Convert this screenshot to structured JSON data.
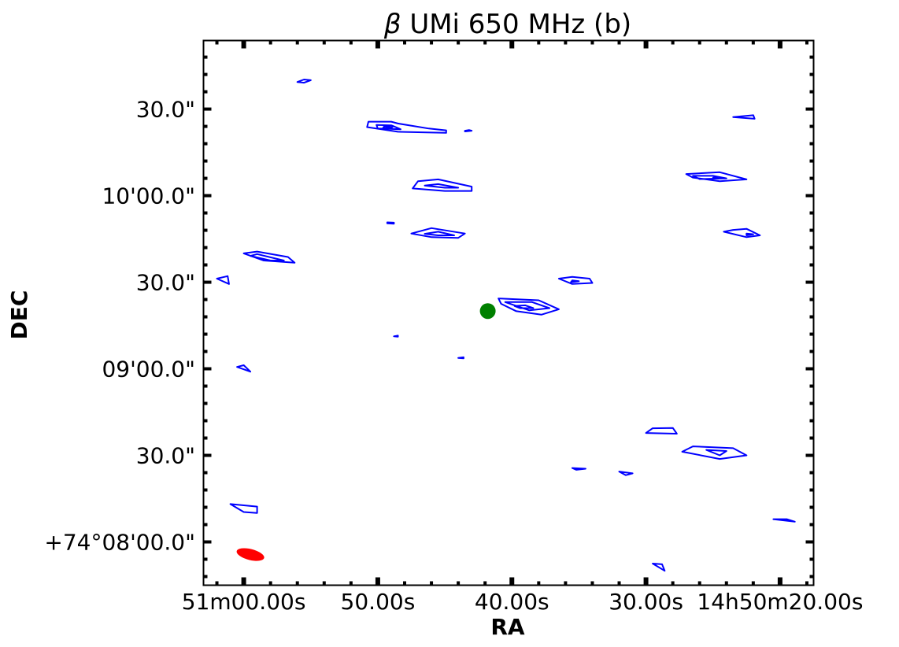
{
  "chart_data": {
    "type": "contour",
    "title": "β UMi 650 MHz  (b)",
    "title_symbol": "β",
    "title_text": " UMi 650 MHz  (b)",
    "xlabel": "RA",
    "ylabel": "DEC",
    "x_unit": "seconds of RA after 14h50m",
    "y_unit": "arcsec of DEC after +74°08'00\"",
    "xlim": [
      63,
      17.5
    ],
    "ylim": [
      -12,
      139
    ],
    "x_ticks": [
      {
        "value": 60,
        "label": "51m00.00s"
      },
      {
        "value": 50,
        "label": "50.00s"
      },
      {
        "value": 40,
        "label": "40.00s"
      },
      {
        "value": 30,
        "label": "30.00s"
      },
      {
        "value": 20,
        "label": "14h50m20.00s"
      }
    ],
    "y_ticks": [
      {
        "value": 0,
        "label": "+74°08'00.0\""
      },
      {
        "value": 24,
        "label": "30.0\""
      },
      {
        "value": 48,
        "label": "09'00.0\""
      },
      {
        "value": 72,
        "label": "30.0\""
      },
      {
        "value": 96,
        "label": "10'00.0\""
      },
      {
        "value": 120,
        "label": "30.0\""
      }
    ],
    "contour_color": "#0000ff",
    "marker_color": "#008000",
    "beam_color": "#ff0000",
    "marker": {
      "ra": 41.8,
      "dec": 64
    },
    "beam": {
      "ra": 59.5,
      "dec": -3.5
    },
    "contours": [
      [
        [
          56.0,
          127.5
        ],
        [
          55.5,
          128.2
        ],
        [
          55.0,
          128.0
        ],
        [
          55.5,
          127.3
        ],
        [
          56.0,
          127.5
        ]
      ],
      [
        [
          49.0,
          116.5
        ],
        [
          50.7,
          116.5
        ],
        [
          50.8,
          115.0
        ],
        [
          48.5,
          113.7
        ],
        [
          46.0,
          113.5
        ],
        [
          44.9,
          113.4
        ],
        [
          44.9,
          114.1
        ],
        [
          46.2,
          114.6
        ],
        [
          48.5,
          116.0
        ],
        [
          49.0,
          116.5
        ]
      ],
      [
        [
          49.0,
          115.5
        ],
        [
          50.1,
          115.6
        ],
        [
          50.0,
          114.6
        ],
        [
          48.3,
          114.4
        ],
        [
          48.8,
          115.2
        ],
        [
          49.0,
          115.5
        ]
      ],
      [
        [
          48.9,
          115.0
        ],
        [
          49.5,
          115.3
        ],
        [
          49.6,
          114.8
        ],
        [
          49.0,
          114.8
        ],
        [
          48.9,
          115.0
        ]
      ],
      [
        [
          43.5,
          114.0
        ],
        [
          43.2,
          114.2
        ],
        [
          43.0,
          114.0
        ],
        [
          43.5,
          113.8
        ],
        [
          43.5,
          114.0
        ]
      ],
      [
        [
          45.5,
          100.5
        ],
        [
          47.0,
          100.0
        ],
        [
          47.4,
          98.0
        ],
        [
          45.0,
          97.3
        ],
        [
          43.0,
          97.3
        ],
        [
          43.0,
          98.5
        ],
        [
          45.5,
          100.5
        ]
      ],
      [
        [
          45.5,
          99.2
        ],
        [
          46.5,
          98.8
        ],
        [
          45.0,
          98.2
        ],
        [
          44.0,
          98.2
        ],
        [
          45.5,
          99.2
        ]
      ],
      [
        [
          49.3,
          88.6
        ],
        [
          48.8,
          88.5
        ],
        [
          48.8,
          88.2
        ],
        [
          49.3,
          88.3
        ],
        [
          49.3,
          88.6
        ]
      ],
      [
        [
          46.0,
          87.0
        ],
        [
          47.5,
          85.5
        ],
        [
          46.0,
          84.5
        ],
        [
          44.0,
          84.3
        ],
        [
          43.5,
          85.5
        ],
        [
          46.0,
          87.0
        ]
      ],
      [
        [
          45.5,
          86.0
        ],
        [
          46.5,
          85.4
        ],
        [
          45.5,
          85.0
        ],
        [
          44.3,
          85.0
        ],
        [
          45.5,
          86.0
        ]
      ],
      [
        [
          59.0,
          80.5
        ],
        [
          60.0,
          80.0
        ],
        [
          58.5,
          78.0
        ],
        [
          56.2,
          77.4
        ],
        [
          56.7,
          79.0
        ],
        [
          59.0,
          80.5
        ]
      ],
      [
        [
          59.0,
          79.8
        ],
        [
          59.5,
          79.3
        ],
        [
          58.0,
          78.0
        ],
        [
          57.0,
          78.0
        ],
        [
          59.0,
          79.8
        ]
      ],
      [
        [
          61.2,
          73.7
        ],
        [
          62.0,
          73.0
        ],
        [
          61.1,
          71.5
        ],
        [
          61.2,
          73.7
        ]
      ],
      [
        [
          41.0,
          67.5
        ],
        [
          38.0,
          67.0
        ],
        [
          36.5,
          64.5
        ],
        [
          37.8,
          63.0
        ],
        [
          39.7,
          64.0
        ],
        [
          40.8,
          66.0
        ],
        [
          41.0,
          67.5
        ]
      ],
      [
        [
          40.5,
          66.5
        ],
        [
          38.5,
          66.5
        ],
        [
          37.2,
          64.8
        ],
        [
          38.7,
          64.2
        ],
        [
          40.5,
          66.5
        ]
      ],
      [
        [
          39.8,
          65.4
        ],
        [
          39.0,
          65.6
        ],
        [
          38.4,
          64.8
        ],
        [
          39.4,
          64.8
        ],
        [
          39.8,
          65.4
        ]
      ],
      [
        [
          35.5,
          73.5
        ],
        [
          34.2,
          73.0
        ],
        [
          34.0,
          71.8
        ],
        [
          35.5,
          71.5
        ],
        [
          36.5,
          73.0
        ],
        [
          35.5,
          73.5
        ]
      ],
      [
        [
          35.5,
          72.5
        ],
        [
          35.0,
          72.3
        ],
        [
          35.6,
          72.0
        ],
        [
          35.5,
          72.5
        ]
      ],
      [
        [
          48.8,
          57.0
        ],
        [
          48.5,
          57.2
        ],
        [
          48.5,
          56.9
        ],
        [
          48.8,
          57.0
        ]
      ],
      [
        [
          44.0,
          51.0
        ],
        [
          43.6,
          51.2
        ],
        [
          43.6,
          50.9
        ],
        [
          44.0,
          51.0
        ]
      ],
      [
        [
          60.0,
          49.0
        ],
        [
          60.5,
          48.5
        ],
        [
          59.5,
          47.2
        ],
        [
          60.0,
          49.0
        ]
      ],
      [
        [
          27.0,
          102.0
        ],
        [
          24.5,
          102.5
        ],
        [
          22.5,
          100.5
        ],
        [
          24.5,
          100.0
        ],
        [
          26.5,
          101.0
        ],
        [
          27.0,
          102.0
        ]
      ],
      [
        [
          26.5,
          101.5
        ],
        [
          25.0,
          101.5
        ],
        [
          24.0,
          100.8
        ],
        [
          26.0,
          100.6
        ],
        [
          26.5,
          101.5
        ]
      ],
      [
        [
          25.0,
          101.0
        ],
        [
          24.7,
          101.1
        ],
        [
          24.6,
          100.7
        ],
        [
          25.0,
          101.0
        ]
      ],
      [
        [
          23.5,
          117.8
        ],
        [
          22.0,
          118.3
        ],
        [
          21.9,
          117.3
        ],
        [
          23.5,
          117.8
        ]
      ],
      [
        [
          23.5,
          86.5
        ],
        [
          22.5,
          86.8
        ],
        [
          21.5,
          85.0
        ],
        [
          22.5,
          84.5
        ],
        [
          24.2,
          86.0
        ],
        [
          23.5,
          86.5
        ]
      ],
      [
        [
          22.5,
          85.5
        ],
        [
          22.0,
          85.3
        ],
        [
          22.5,
          85.0
        ],
        [
          22.5,
          85.5
        ]
      ],
      [
        [
          29.5,
          31.5
        ],
        [
          28.0,
          31.6
        ],
        [
          27.7,
          30.0
        ],
        [
          30.0,
          30.2
        ],
        [
          29.5,
          31.5
        ]
      ],
      [
        [
          26.5,
          26.5
        ],
        [
          23.5,
          26.0
        ],
        [
          22.5,
          24.0
        ],
        [
          24.5,
          23.0
        ],
        [
          27.3,
          25.0
        ],
        [
          26.5,
          26.5
        ]
      ],
      [
        [
          25.5,
          25.5
        ],
        [
          24.0,
          25.2
        ],
        [
          24.5,
          24.0
        ],
        [
          25.5,
          25.5
        ]
      ],
      [
        [
          35.5,
          20.5
        ],
        [
          34.5,
          20.3
        ],
        [
          35.2,
          20.0
        ],
        [
          35.5,
          20.5
        ]
      ],
      [
        [
          32.0,
          19.5
        ],
        [
          31.0,
          19.0
        ],
        [
          31.5,
          18.5
        ],
        [
          32.0,
          19.5
        ]
      ],
      [
        [
          61.0,
          10.5
        ],
        [
          59.0,
          9.8
        ],
        [
          59.0,
          8.0
        ],
        [
          60.0,
          8.3
        ],
        [
          61.0,
          10.5
        ]
      ],
      [
        [
          20.5,
          6.3
        ],
        [
          19.5,
          6.3
        ],
        [
          18.9,
          5.6
        ],
        [
          20.5,
          6.3
        ]
      ],
      [
        [
          29.5,
          -6.0
        ],
        [
          28.8,
          -6.2
        ],
        [
          28.6,
          -8.0
        ],
        [
          29.5,
          -6.0
        ]
      ]
    ]
  }
}
